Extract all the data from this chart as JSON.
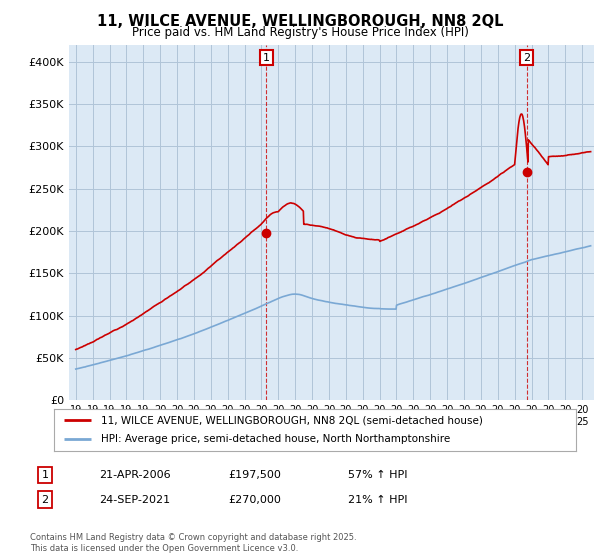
{
  "title": "11, WILCE AVENUE, WELLINGBOROUGH, NN8 2QL",
  "subtitle": "Price paid vs. HM Land Registry's House Price Index (HPI)",
  "legend_line1": "11, WILCE AVENUE, WELLINGBOROUGH, NN8 2QL (semi-detached house)",
  "legend_line2": "HPI: Average price, semi-detached house, North Northamptonshire",
  "annotation1_date": "21-APR-2006",
  "annotation1_price": "£197,500",
  "annotation1_pct": "57% ↑ HPI",
  "annotation2_date": "24-SEP-2021",
  "annotation2_price": "£270,000",
  "annotation2_pct": "21% ↑ HPI",
  "footnote": "Contains HM Land Registry data © Crown copyright and database right 2025.\nThis data is licensed under the Open Government Licence v3.0.",
  "house_color": "#cc0000",
  "hpi_color": "#7aa8d4",
  "ylim": [
    0,
    420000
  ],
  "yticks": [
    0,
    50000,
    100000,
    150000,
    200000,
    250000,
    300000,
    350000,
    400000
  ],
  "background_color": "#ffffff",
  "plot_bg_color": "#dce9f5",
  "grid_color": "#b0c4d8"
}
